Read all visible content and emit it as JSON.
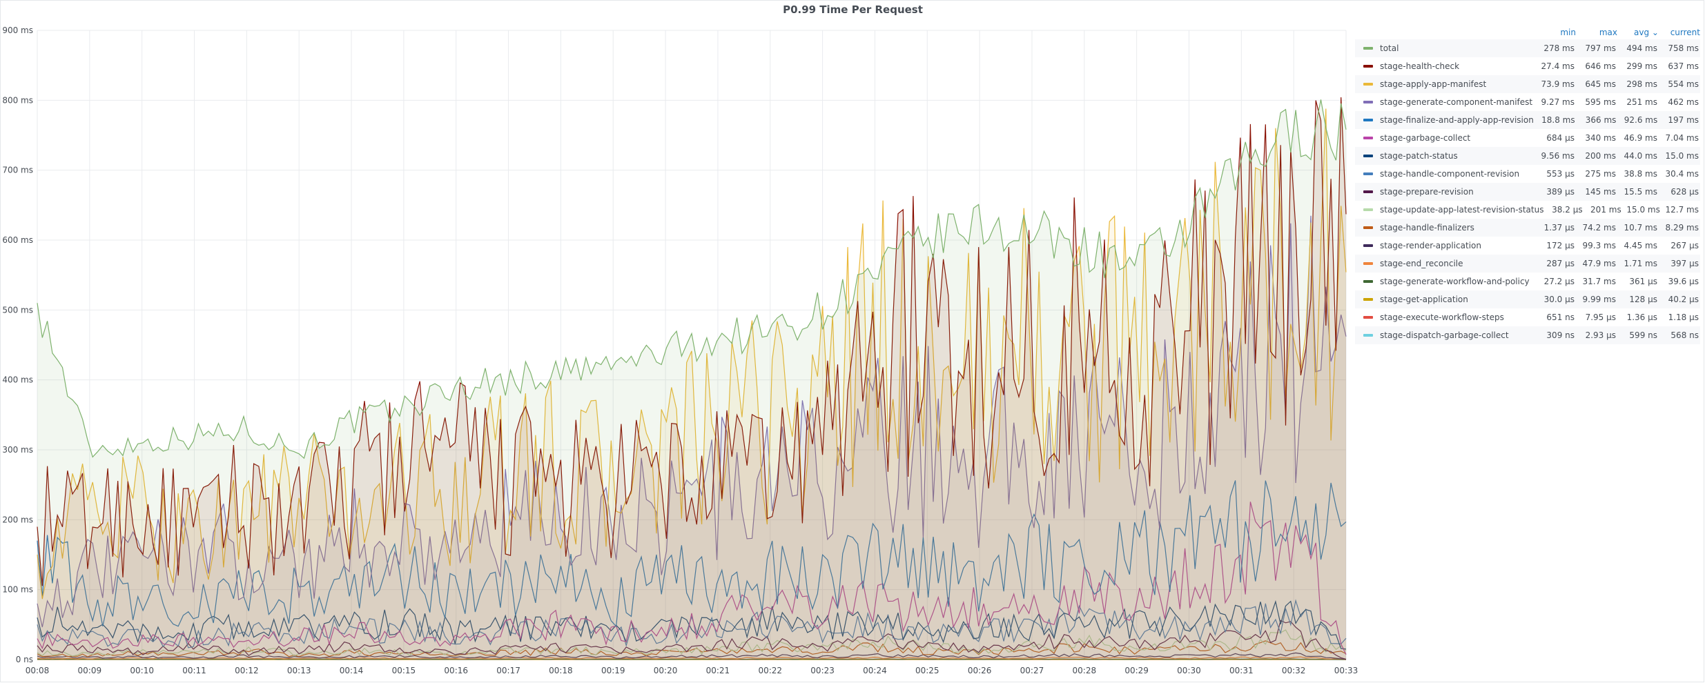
{
  "panel": {
    "title": "P0.99 Time Per Request"
  },
  "legend": {
    "headers": {
      "min": "min",
      "max": "max",
      "avg": "avg ⌄",
      "current": "current"
    },
    "rows": [
      {
        "name": "total",
        "color": "#7eb26d",
        "min": "278 ms",
        "max": "797 ms",
        "avg": "494 ms",
        "current": "758 ms"
      },
      {
        "name": "stage-health-check",
        "color": "#890f02",
        "min": "27.4 ms",
        "max": "646 ms",
        "avg": "299 ms",
        "current": "637 ms"
      },
      {
        "name": "stage-apply-app-manifest",
        "color": "#eab839",
        "min": "73.9 ms",
        "max": "645 ms",
        "avg": "298 ms",
        "current": "554 ms"
      },
      {
        "name": "stage-generate-component-manifest",
        "color": "#806eb7",
        "min": "9.27 ms",
        "max": "595 ms",
        "avg": "251 ms",
        "current": "462 ms"
      },
      {
        "name": "stage-finalize-and-apply-app-revision",
        "color": "#1f78c1",
        "min": "18.8 ms",
        "max": "366 ms",
        "avg": "92.6 ms",
        "current": "197 ms"
      },
      {
        "name": "stage-garbage-collect",
        "color": "#ba43a9",
        "min": "684 µs",
        "max": "340 ms",
        "avg": "46.9 ms",
        "current": "7.04 ms"
      },
      {
        "name": "stage-patch-status",
        "color": "#0a437c",
        "min": "9.56 ms",
        "max": "200 ms",
        "avg": "44.0 ms",
        "current": "15.0 ms"
      },
      {
        "name": "stage-handle-component-revision",
        "color": "#447ebc",
        "min": "553 µs",
        "max": "275 ms",
        "avg": "38.8 ms",
        "current": "30.4 ms"
      },
      {
        "name": "stage-prepare-revision",
        "color": "#511749",
        "min": "389 µs",
        "max": "145 ms",
        "avg": "15.5 ms",
        "current": "628 µs"
      },
      {
        "name": "stage-update-app-latest-revision-status",
        "color": "#b7dbab",
        "min": "38.2 µs",
        "max": "201 ms",
        "avg": "15.0 ms",
        "current": "12.7 ms"
      },
      {
        "name": "stage-handle-finalizers",
        "color": "#bf5b17",
        "min": "1.37 µs",
        "max": "74.2 ms",
        "avg": "10.7 ms",
        "current": "8.29 ms"
      },
      {
        "name": "stage-render-application",
        "color": "#3f2b5b",
        "min": "172 µs",
        "max": "99.3 ms",
        "avg": "4.45 ms",
        "current": "267 µs"
      },
      {
        "name": "stage-end_reconcile",
        "color": "#ef843c",
        "min": "287 µs",
        "max": "47.9 ms",
        "avg": "1.71 ms",
        "current": "397 µs"
      },
      {
        "name": "stage-generate-workflow-and-policy",
        "color": "#3f6833",
        "min": "27.2 µs",
        "max": "31.7 ms",
        "avg": "361 µs",
        "current": "39.6 µs"
      },
      {
        "name": "stage-get-application",
        "color": "#cca300",
        "min": "30.0 µs",
        "max": "9.99 ms",
        "avg": "128 µs",
        "current": "40.2 µs"
      },
      {
        "name": "stage-execute-workflow-steps",
        "color": "#e24d42",
        "min": "651 ns",
        "max": "7.95 µs",
        "avg": "1.36 µs",
        "current": "1.18 µs"
      },
      {
        "name": "stage-dispatch-garbage-collect",
        "color": "#6ed0e0",
        "min": "309 ns",
        "max": "2.93 µs",
        "avg": "599 ns",
        "current": "568 ns"
      }
    ]
  },
  "chart_data": {
    "type": "area",
    "title": "P0.99 Time Per Request",
    "ylabel": "",
    "xlabel": "",
    "ylim": [
      0,
      900
    ],
    "y_unit": "ms",
    "y_ticks": [
      "0 ns",
      "100 ms",
      "200 ms",
      "300 ms",
      "400 ms",
      "500 ms",
      "600 ms",
      "700 ms",
      "800 ms",
      "900 ms"
    ],
    "x_ticks": [
      "00:08",
      "00:09",
      "00:10",
      "00:11",
      "00:12",
      "00:13",
      "00:14",
      "00:15",
      "00:16",
      "00:17",
      "00:18",
      "00:19",
      "00:20",
      "00:21",
      "00:22",
      "00:23",
      "00:24",
      "00:25",
      "00:26",
      "00:27",
      "00:28",
      "00:29",
      "00:30",
      "00:31",
      "00:32",
      "00:33"
    ],
    "grid": true,
    "legend_placement": "right",
    "series": [
      {
        "name": "total",
        "color": "#7eb26d",
        "fill": true,
        "values": [
          510,
          300,
          310,
          320,
          330,
          300,
          340,
          360,
          390,
          400,
          410,
          420,
          440,
          460,
          470,
          500,
          550,
          600,
          620,
          610,
          590,
          560,
          620,
          700,
          760,
          758
        ]
      },
      {
        "name": "stage-health-check",
        "color": "#890f02",
        "fill": true,
        "values": [
          190,
          200,
          210,
          180,
          230,
          200,
          250,
          300,
          280,
          260,
          250,
          230,
          260,
          250,
          280,
          300,
          470,
          460,
          420,
          450,
          470,
          430,
          470,
          520,
          600,
          637
        ]
      },
      {
        "name": "stage-apply-app-manifest",
        "color": "#eab839",
        "fill": true,
        "values": [
          150,
          220,
          200,
          190,
          210,
          230,
          220,
          250,
          240,
          270,
          280,
          250,
          300,
          310,
          350,
          370,
          460,
          440,
          410,
          470,
          420,
          460,
          480,
          520,
          560,
          554
        ]
      },
      {
        "name": "stage-generate-component-manifest",
        "color": "#806eb7",
        "fill": true,
        "values": [
          80,
          120,
          140,
          160,
          150,
          140,
          170,
          180,
          160,
          190,
          210,
          200,
          220,
          240,
          260,
          270,
          300,
          310,
          290,
          320,
          330,
          300,
          350,
          400,
          450,
          462
        ]
      },
      {
        "name": "stage-finalize-and-apply-app-revision",
        "color": "#1f78c1",
        "fill": false,
        "values": [
          170,
          80,
          90,
          70,
          100,
          90,
          110,
          120,
          90,
          100,
          110,
          80,
          120,
          100,
          130,
          120,
          140,
          130,
          120,
          150,
          140,
          160,
          170,
          180,
          190,
          197
        ]
      },
      {
        "name": "stage-garbage-collect",
        "color": "#ba43a9",
        "fill": false,
        "values": [
          30,
          20,
          25,
          30,
          20,
          35,
          40,
          30,
          25,
          40,
          50,
          35,
          45,
          60,
          80,
          70,
          90,
          60,
          80,
          70,
          100,
          80,
          120,
          160,
          200,
          7.04
        ]
      },
      {
        "name": "stage-patch-status",
        "color": "#0a437c",
        "fill": false,
        "values": [
          60,
          40,
          45,
          40,
          50,
          45,
          50,
          55,
          40,
          45,
          50,
          40,
          45,
          50,
          55,
          45,
          60,
          40,
          50,
          45,
          60,
          50,
          55,
          60,
          70,
          15
        ]
      },
      {
        "name": "stage-handle-component-revision",
        "color": "#447ebc",
        "fill": false,
        "values": [
          50,
          30,
          35,
          30,
          40,
          35,
          45,
          40,
          35,
          40,
          45,
          35,
          40,
          45,
          50,
          40,
          55,
          45,
          40,
          50,
          55,
          45,
          50,
          55,
          60,
          30.4
        ]
      },
      {
        "name": "stage-prepare-revision",
        "color": "#511749",
        "fill": false,
        "values": [
          20,
          15,
          12,
          18,
          10,
          15,
          20,
          12,
          10,
          15,
          18,
          12,
          15,
          20,
          25,
          18,
          30,
          20,
          15,
          25,
          30,
          20,
          25,
          35,
          40,
          0.628
        ]
      },
      {
        "name": "stage-update-app-latest-revision-status",
        "color": "#b7dbab",
        "fill": false,
        "values": [
          10,
          8,
          12,
          10,
          15,
          8,
          12,
          10,
          8,
          12,
          15,
          10,
          12,
          15,
          20,
          15,
          25,
          18,
          12,
          20,
          25,
          15,
          20,
          25,
          30,
          12.7
        ]
      },
      {
        "name": "stage-handle-finalizers",
        "color": "#bf5b17",
        "fill": false,
        "values": [
          8,
          6,
          10,
          8,
          12,
          6,
          10,
          8,
          6,
          10,
          12,
          8,
          10,
          12,
          15,
          12,
          18,
          12,
          10,
          15,
          18,
          12,
          15,
          18,
          20,
          8.29
        ]
      },
      {
        "name": "stage-render-application",
        "color": "#3f2b5b",
        "fill": false,
        "values": [
          5,
          3,
          4,
          3,
          5,
          3,
          4,
          5,
          3,
          4,
          5,
          3,
          4,
          5,
          6,
          4,
          6,
          5,
          4,
          5,
          6,
          4,
          5,
          6,
          7,
          0.267
        ]
      },
      {
        "name": "stage-end_reconcile",
        "color": "#ef843c",
        "fill": false,
        "values": [
          2,
          1.5,
          2,
          1.5,
          2,
          1.5,
          2,
          2,
          1.5,
          2,
          2,
          1.5,
          2,
          2,
          2.5,
          2,
          2.5,
          2,
          1.5,
          2,
          2.5,
          2,
          2,
          2.5,
          3,
          0.397
        ]
      },
      {
        "name": "stage-generate-workflow-and-policy",
        "color": "#3f6833",
        "fill": false,
        "values": [
          0.5,
          0.4,
          0.4,
          0.3,
          0.5,
          0.4,
          0.4,
          0.5,
          0.3,
          0.4,
          0.5,
          0.3,
          0.4,
          0.5,
          0.6,
          0.4,
          0.6,
          0.5,
          0.4,
          0.5,
          0.6,
          0.4,
          0.5,
          0.6,
          0.7,
          0.0396
        ]
      },
      {
        "name": "stage-get-application",
        "color": "#cca300",
        "fill": false,
        "values": [
          0.2,
          0.1,
          0.1,
          0.1,
          0.2,
          0.1,
          0.1,
          0.2,
          0.1,
          0.1,
          0.2,
          0.1,
          0.1,
          0.2,
          0.2,
          0.1,
          0.2,
          0.2,
          0.1,
          0.2,
          0.2,
          0.1,
          0.2,
          0.2,
          0.2,
          0.0402
        ]
      },
      {
        "name": "stage-execute-workflow-steps",
        "color": "#e24d42",
        "fill": false,
        "values": [
          0.002,
          0.001,
          0.001,
          0.001,
          0.002,
          0.001,
          0.001,
          0.002,
          0.001,
          0.001,
          0.002,
          0.001,
          0.001,
          0.002,
          0.002,
          0.001,
          0.002,
          0.002,
          0.001,
          0.002,
          0.002,
          0.001,
          0.002,
          0.002,
          0.002,
          0.00118
        ]
      },
      {
        "name": "stage-dispatch-garbage-collect",
        "color": "#6ed0e0",
        "fill": false,
        "values": [
          0.001,
          0.0006,
          0.0006,
          0.0006,
          0.0008,
          0.0006,
          0.0006,
          0.0008,
          0.0006,
          0.0006,
          0.0008,
          0.0006,
          0.0006,
          0.0008,
          0.0008,
          0.0006,
          0.0008,
          0.0008,
          0.0006,
          0.0008,
          0.0008,
          0.0006,
          0.0008,
          0.0008,
          0.0008,
          0.000568
        ]
      }
    ]
  }
}
